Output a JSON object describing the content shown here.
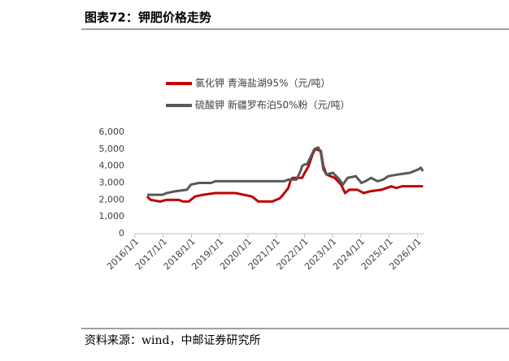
{
  "chart_data": {
    "type": "line",
    "title": "图表72：钾肥价格走势",
    "source": "资料来源：wind，中邮证券研究所",
    "xlim": [
      2016,
      2026.25
    ],
    "xticks": [
      {
        "value": 2016,
        "label": "2016/1/1"
      },
      {
        "value": 2017,
        "label": "2017/1/1"
      },
      {
        "value": 2018,
        "label": "2018/1/1"
      },
      {
        "value": 2019,
        "label": "2019/1/1"
      },
      {
        "value": 2020,
        "label": "2020/1/1"
      },
      {
        "value": 2021,
        "label": "2021/1/1"
      },
      {
        "value": 2022,
        "label": "2022/1/1"
      },
      {
        "value": 2023,
        "label": "2023/1/1"
      },
      {
        "value": 2024,
        "label": "2024/1/1"
      },
      {
        "value": 2025,
        "label": "2025/1/1"
      },
      {
        "value": 2026,
        "label": "2026/1/1"
      }
    ],
    "ylim": [
      0,
      6000
    ],
    "yticks": [
      0,
      {
        "value": 1000,
        "label": "1,000"
      },
      {
        "value": 2000,
        "label": "2,000"
      },
      {
        "value": 3000,
        "label": "3,000"
      },
      {
        "value": 4000,
        "label": "4,000"
      },
      {
        "value": 5000,
        "label": "5,000"
      },
      {
        "value": 6000,
        "label": "6,000"
      }
    ],
    "legend": "top",
    "series": [
      {
        "name": "氯化钾 青海盐湖95%（元/吨）",
        "color": "#c00000",
        "x": [
          2016.43,
          2016.55,
          2016.89,
          2017.12,
          2017.55,
          2017.7,
          2017.9,
          2018.13,
          2018.41,
          2018.85,
          2019.56,
          2019.85,
          2020.14,
          2020.37,
          2020.86,
          2021.0,
          2021.14,
          2021.29,
          2021.43,
          2021.52,
          2021.58,
          2021.92,
          2022.01,
          2022.15,
          2022.29,
          2022.38,
          2022.58,
          2022.67,
          2022.78,
          2023.07,
          2023.3,
          2023.44,
          2023.59,
          2023.87,
          2024.1,
          2024.31,
          2024.74,
          2025.08,
          2025.25,
          2025.45,
          2026.2
        ],
        "values": [
          2200,
          2000,
          1900,
          2000,
          2000,
          1900,
          1900,
          2200,
          2300,
          2400,
          2400,
          2300,
          2200,
          1900,
          1900,
          2000,
          2100,
          2400,
          2700,
          3200,
          3300,
          3300,
          3600,
          4000,
          4700,
          5000,
          4900,
          4000,
          3500,
          3300,
          2900,
          2400,
          2600,
          2600,
          2400,
          2500,
          2600,
          2800,
          2700,
          2800,
          2800
        ]
      },
      {
        "name": "硫酸钾 新疆罗布泊50%粉（元/吨）",
        "color": "#595959",
        "x": [
          2016.43,
          2016.98,
          2017.12,
          2017.41,
          2017.84,
          2017.98,
          2018.27,
          2018.7,
          2018.85,
          2021.29,
          2021.43,
          2021.72,
          2021.86,
          2021.92,
          2022.01,
          2022.09,
          2022.21,
          2022.35,
          2022.49,
          2022.58,
          2022.67,
          2022.78,
          2023.01,
          2023.24,
          2023.36,
          2023.53,
          2023.82,
          2024.02,
          2024.16,
          2024.36,
          2024.59,
          2024.79,
          2024.97,
          2025.31,
          2025.74,
          2026.03,
          2026.12,
          2026.2
        ],
        "values": [
          2300,
          2300,
          2400,
          2500,
          2600,
          2900,
          3000,
          3000,
          3100,
          3100,
          3200,
          3200,
          3700,
          4000,
          4100,
          4100,
          4500,
          5000,
          5100,
          4800,
          3800,
          3500,
          3600,
          3200,
          2900,
          3300,
          3400,
          3000,
          3100,
          3300,
          3100,
          3200,
          3400,
          3500,
          3600,
          3800,
          3900,
          3700
        ]
      }
    ]
  }
}
